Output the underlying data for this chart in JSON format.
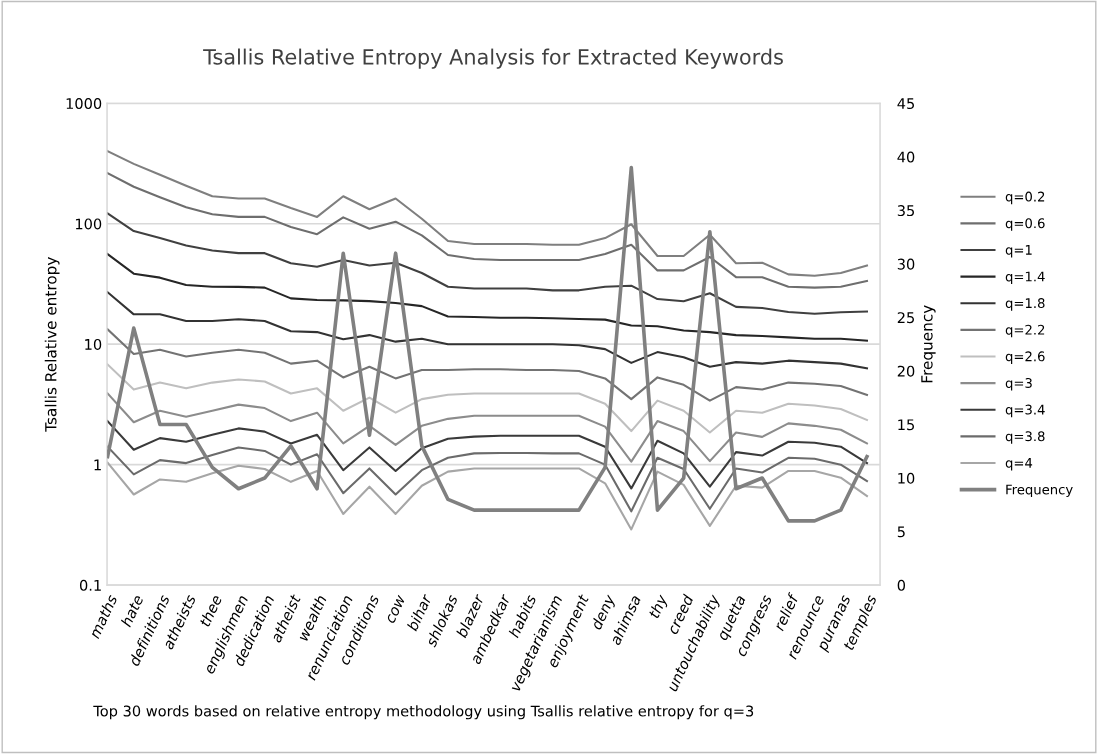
{
  "chart_data": {
    "type": "line",
    "title": "Tsallis Relative Entropy Analysis for Extracted Keywords",
    "ylabel": "Tsallis Relative entropy",
    "y2label": "Frequency",
    "annotations": [
      "Top 30 words based on relative entropy methodology using Tsallis relative entropy for q=3"
    ],
    "categories": [
      "maths",
      "hate",
      "definitions",
      "atheists",
      "thee",
      "englishmen",
      "dedication",
      "atheist",
      "wealth",
      "renunciation",
      "conditions",
      "cow",
      "bihar",
      "shlokas",
      "blazer",
      "ambedkar",
      "habits",
      "vegetarianism",
      "enjoyment",
      "deny",
      "ahimsa",
      "thy",
      "creed",
      "untouchability",
      "quetta",
      "congress",
      "relief",
      "renounce",
      "puranas",
      "temples"
    ],
    "log": "y",
    "ylim": [
      0.1,
      1000
    ],
    "yticks": [
      0.1,
      1,
      10,
      100,
      1000
    ],
    "y2lim": [
      0,
      45
    ],
    "y2ticks": [
      0,
      5,
      10,
      15,
      20,
      25,
      30,
      35,
      40,
      45
    ],
    "grid": "y",
    "legend": "right",
    "marker": "none",
    "line_style": "solid",
    "series": [
      {
        "name": "q=0.2",
        "color": "#7f7f7f",
        "values": [
          400,
          314,
          255,
          207,
          169,
          162,
          162,
          135,
          114,
          169,
          132,
          162,
          110,
          72,
          68,
          68,
          68,
          67,
          67,
          76,
          99,
          54,
          54,
          81,
          47,
          47.5,
          38,
          37,
          39,
          45
        ]
      },
      {
        "name": "q=0.6",
        "color": "#6e6e6e",
        "values": [
          263,
          203,
          166,
          137,
          120,
          114,
          114,
          94,
          82,
          113,
          91,
          104,
          80,
          55,
          51,
          50,
          50,
          50,
          50,
          56,
          67,
          41,
          41,
          53,
          36,
          36,
          30,
          29.5,
          30,
          33.5
        ]
      },
      {
        "name": "q=1",
        "color": "#404040",
        "values": [
          122,
          87,
          76,
          66,
          60,
          57,
          57,
          47,
          44,
          50,
          45,
          47.5,
          39,
          30,
          29,
          29,
          29,
          28,
          28,
          30,
          30.6,
          23.7,
          22.7,
          26.5,
          20.4,
          20,
          18.5,
          17.9,
          18.4,
          18.7
        ]
      },
      {
        "name": "q=1.4",
        "color": "#262626",
        "values": [
          56,
          38.5,
          35.7,
          31,
          30,
          29.9,
          29.5,
          24,
          23.3,
          23.1,
          22.8,
          22,
          20.7,
          17,
          16.8,
          16.6,
          16.6,
          16.4,
          16.2,
          16,
          14.3,
          14.1,
          13,
          12.6,
          11.9,
          11.7,
          11.4,
          11.1,
          11.1,
          10.7
        ]
      },
      {
        "name": "q=1.8",
        "color": "#333333",
        "values": [
          27,
          17.7,
          17.7,
          15.6,
          15.6,
          16.1,
          15.6,
          12.8,
          12.6,
          11,
          11.9,
          10.5,
          11.1,
          10,
          10,
          10,
          10,
          10,
          9.8,
          9.1,
          7,
          8.6,
          7.8,
          6.5,
          7.1,
          6.9,
          7.3,
          7.1,
          6.9,
          6.3
        ]
      },
      {
        "name": "q=2.2",
        "color": "#737373",
        "values": [
          13.3,
          8.3,
          9,
          7.9,
          8.5,
          9,
          8.5,
          6.9,
          7.3,
          5.3,
          6.5,
          5.2,
          6.1,
          6.1,
          6.2,
          6.2,
          6.1,
          6.1,
          6.0,
          5.2,
          3.5,
          5.3,
          4.6,
          3.4,
          4.4,
          4.2,
          4.8,
          4.7,
          4.5,
          3.8
        ]
      },
      {
        "name": "q=2.6",
        "color": "#bfbfbf",
        "values": [
          6.8,
          4.2,
          4.8,
          4.3,
          4.8,
          5.1,
          4.9,
          3.9,
          4.3,
          2.8,
          3.6,
          2.7,
          3.5,
          3.8,
          3.9,
          3.9,
          3.9,
          3.9,
          3.9,
          3.2,
          1.9,
          3.4,
          2.8,
          1.85,
          2.8,
          2.7,
          3.2,
          3.1,
          2.9,
          2.35
        ]
      },
      {
        "name": "q=3",
        "color": "#8c8c8c",
        "values": [
          3.9,
          2.25,
          2.8,
          2.5,
          2.8,
          3.15,
          2.95,
          2.3,
          2.7,
          1.5,
          2.1,
          1.46,
          2.1,
          2.4,
          2.55,
          2.55,
          2.55,
          2.55,
          2.55,
          2.07,
          1.06,
          2.3,
          1.9,
          1.07,
          1.85,
          1.7,
          2.2,
          2.1,
          1.95,
          1.5
        ]
      },
      {
        "name": "q=3.4",
        "color": "#3a3a3a",
        "values": [
          2.3,
          1.33,
          1.66,
          1.55,
          1.77,
          2.0,
          1.88,
          1.5,
          1.77,
          0.9,
          1.39,
          0.886,
          1.37,
          1.64,
          1.71,
          1.74,
          1.74,
          1.74,
          1.74,
          1.41,
          0.635,
          1.58,
          1.24,
          0.656,
          1.27,
          1.19,
          1.55,
          1.52,
          1.41,
          1.03
        ]
      },
      {
        "name": "q=3.8",
        "color": "#6b6b6b",
        "values": [
          1.41,
          0.83,
          1.09,
          1.03,
          1.2,
          1.39,
          1.3,
          1.0,
          1.22,
          0.58,
          0.93,
          0.565,
          0.9,
          1.14,
          1.24,
          1.25,
          1.25,
          1.24,
          1.24,
          1.0,
          0.41,
          1.14,
          0.92,
          0.43,
          0.93,
          0.86,
          1.14,
          1.12,
          1.0,
          0.73
        ]
      },
      {
        "name": "q=4",
        "color": "#a6a6a6",
        "values": [
          1.04,
          0.565,
          0.754,
          0.72,
          0.85,
          0.98,
          0.92,
          0.72,
          0.886,
          0.39,
          0.656,
          0.39,
          0.668,
          0.875,
          0.93,
          0.93,
          0.93,
          0.93,
          0.93,
          0.7,
          0.29,
          0.875,
          0.68,
          0.31,
          0.668,
          0.645,
          0.886,
          0.886,
          0.78,
          0.55
        ]
      },
      {
        "name": "Frequency",
        "color": "#808080",
        "axis": "y2",
        "values": [
          12,
          24,
          15,
          15,
          11,
          9,
          10,
          13,
          9,
          31,
          14,
          31,
          13,
          8,
          7,
          7,
          7,
          7,
          7,
          11,
          39,
          7,
          10,
          33,
          9,
          10,
          6,
          6,
          7,
          12
        ]
      }
    ]
  }
}
